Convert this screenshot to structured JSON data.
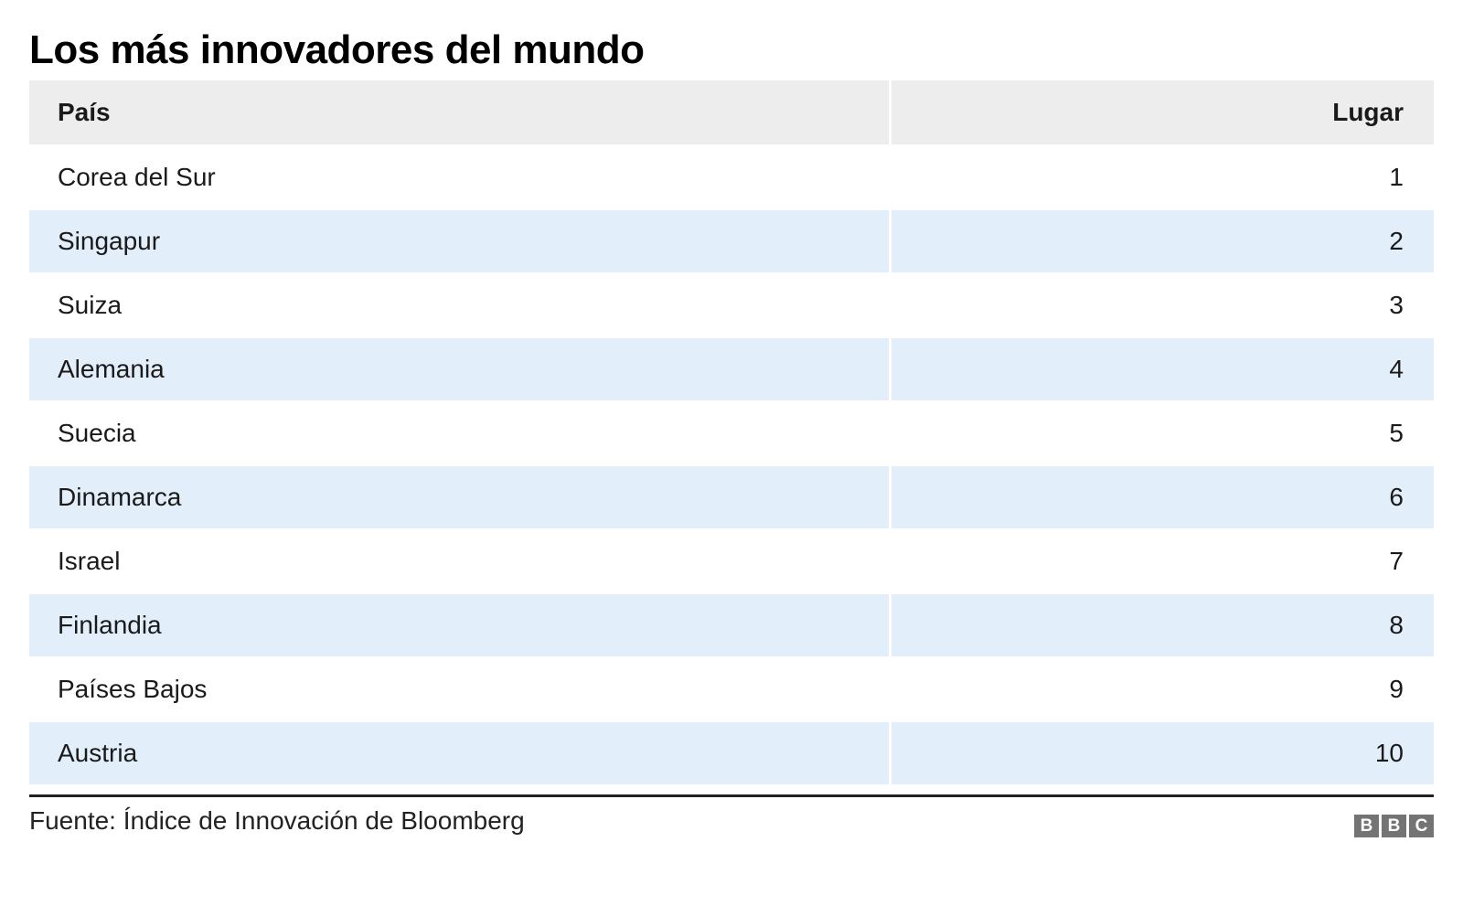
{
  "title": "Los más innovadores del mundo",
  "table": {
    "headers": {
      "country": "País",
      "rank": "Lugar"
    },
    "rows": [
      {
        "country": "Corea del Sur",
        "rank": "1"
      },
      {
        "country": "Singapur",
        "rank": "2"
      },
      {
        "country": "Suiza",
        "rank": "3"
      },
      {
        "country": "Alemania",
        "rank": "4"
      },
      {
        "country": "Suecia",
        "rank": "5"
      },
      {
        "country": "Dinamarca",
        "rank": "6"
      },
      {
        "country": "Israel",
        "rank": "7"
      },
      {
        "country": "Finlandia",
        "rank": "8"
      },
      {
        "country": "Países Bajos",
        "rank": "9"
      },
      {
        "country": "Austria",
        "rank": "10"
      }
    ]
  },
  "footer": {
    "source": "Fuente: Índice de Innovación de Bloomberg"
  },
  "logo": {
    "letters": [
      "B",
      "B",
      "C"
    ]
  },
  "colors": {
    "header_bg": "#ededed",
    "row_alt_bg": "#e2eefa",
    "rule": "#222222",
    "text": "#1a1a1a",
    "logo_bg": "#747474"
  },
  "chart_data": {
    "type": "table",
    "title": "Los más innovadores del mundo",
    "columns": [
      "País",
      "Lugar"
    ],
    "rows": [
      [
        "Corea del Sur",
        1
      ],
      [
        "Singapur",
        2
      ],
      [
        "Suiza",
        3
      ],
      [
        "Alemania",
        4
      ],
      [
        "Suecia",
        5
      ],
      [
        "Dinamarca",
        6
      ],
      [
        "Israel",
        7
      ],
      [
        "Finlandia",
        8
      ],
      [
        "Países Bajos",
        9
      ],
      [
        "Austria",
        10
      ]
    ],
    "source": "Fuente: Índice de Innovación de Bloomberg",
    "layout_hints": {
      "alternating_row_shading": true,
      "rank_column_alignment": "right",
      "header_shaded": true
    }
  }
}
